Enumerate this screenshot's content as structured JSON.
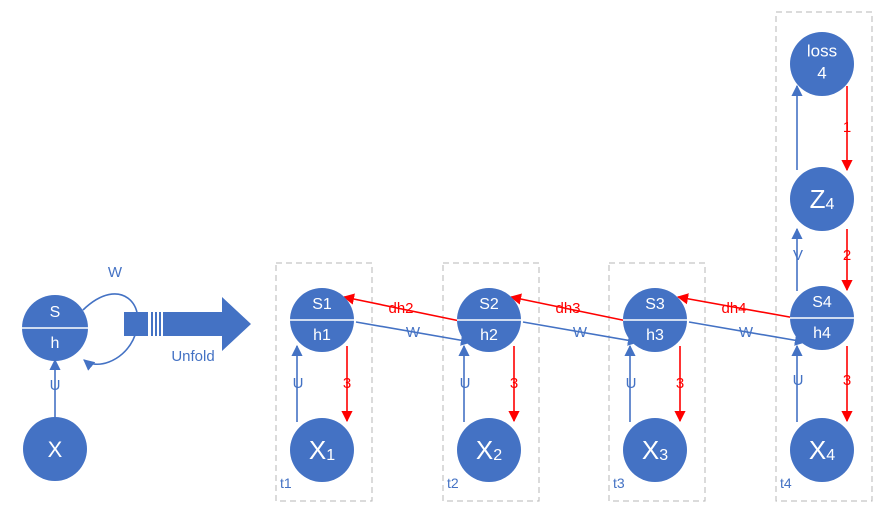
{
  "rolled": {
    "node_top": "S",
    "node_bottom": "h",
    "input": "X",
    "recurrent_weight": "W",
    "input_weight": "U",
    "unfold_label": "Unfold"
  },
  "steps": [
    {
      "time": "t1",
      "state": "S1",
      "hidden": "h1",
      "input_main": "X",
      "input_sub": "1",
      "input_weight": "U",
      "output_edge": "3",
      "grad_in": "dh2",
      "next_weight": "W"
    },
    {
      "time": "t2",
      "state": "S2",
      "hidden": "h2",
      "input_main": "X",
      "input_sub": "2",
      "input_weight": "U",
      "output_edge": "3",
      "grad_in": "dh3",
      "next_weight": "W"
    },
    {
      "time": "t3",
      "state": "S3",
      "hidden": "h3",
      "input_main": "X",
      "input_sub": "3",
      "input_weight": "U",
      "output_edge": "3",
      "grad_in": "dh4",
      "next_weight": "W"
    },
    {
      "time": "t4",
      "state": "S4",
      "hidden": "h4",
      "input_main": "X",
      "input_sub": "4",
      "input_weight": "U",
      "output_edge": "3"
    }
  ],
  "top": {
    "z_main": "Z",
    "z_sub": "4",
    "v_weight": "V",
    "loss_line1": "loss",
    "loss_line2": "4",
    "edge_loss_to_z": "1",
    "edge_z_to_s": "2"
  },
  "colors": {
    "node": "#4472c4",
    "forward_edge": "#4472c4",
    "backward_edge": "#ff0000",
    "frame": "#b7b7b7"
  }
}
